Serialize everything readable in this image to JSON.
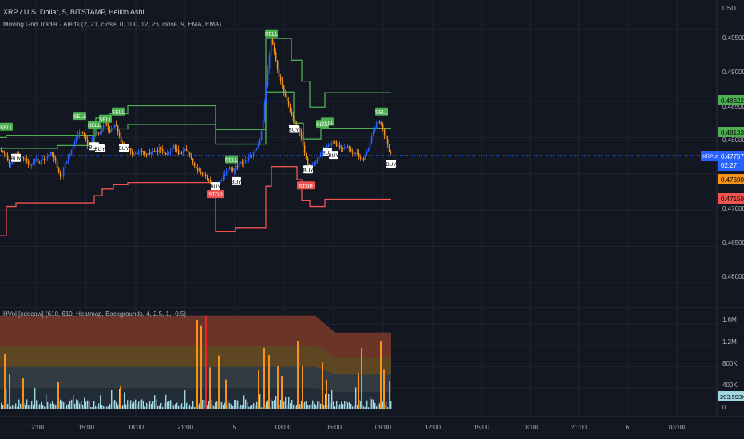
{
  "header": {
    "symbol_line": "XRP / U.S. Dollar, 5, BITSTAMP, Heikin Ashi",
    "indicator_line": "Moving Grid Trader - Alerts (2, 21, close, 0, 100, 12, 26, close, 9, EMA, EMA)",
    "volume_indicator_line": "HVol [xdecow] (610, 610, Heatmap, Backgrounds, 4, 2.5, 1, -0.5)"
  },
  "price_axis": {
    "currency": "USD",
    "ticks": [
      "0.4950000",
      "0.4900000",
      "0.4850000",
      "0.4800000",
      "0.4750000",
      "0.4700000",
      "0.4650000",
      "0.4600000"
    ]
  },
  "price_labels": {
    "upper_green": "0.4862221",
    "mid_green": "0.4813341",
    "symbol_badge": "XRPUSD",
    "last_price": "0.4775700",
    "countdown": "02:27",
    "orange_level": "0.4769020",
    "red_level": "0.4715038"
  },
  "volume_axis": {
    "ticks": [
      "1.6M",
      "1.2M",
      "800K",
      "400K",
      "0"
    ],
    "last_volume": "203.593K"
  },
  "time_axis": {
    "ticks": [
      "12:00",
      "15:00",
      "18:00",
      "21:00",
      "5",
      "03:00",
      "06:00",
      "09:00",
      "12:00",
      "15:00",
      "18:00",
      "21:00",
      "6",
      "03:00"
    ]
  },
  "signal_labels": {
    "buy": "BUY",
    "sell": "SELL",
    "stop": "STOP"
  },
  "colors": {
    "background": "#131722",
    "grid": "#1f2433",
    "candle_up": "#2962ff",
    "candle_down": "#f7931a",
    "grid_line_green": "#4caf50",
    "grid_line_red": "#f05350",
    "buy_label_bg": "#ffffff",
    "sell_label_bg": "#4caf50",
    "stop_label_bg": "#f05350",
    "last_price_bg": "#2962ff",
    "orange_badge": "#f7931a",
    "red_badge": "#f05350",
    "volume_bar": "#9fd6e0",
    "volume_high": "#f7931a",
    "volume_extreme": "#e5262b"
  },
  "chart_data": {
    "type": "candlestick",
    "instrument": "XRP / U.S. Dollar",
    "timeframe": "5",
    "exchange": "BITSTAMP",
    "candle_style": "Heikin Ashi",
    "ylim": [
      0.458,
      0.499
    ],
    "close_path": [
      [
        0,
        0.4783
      ],
      [
        4,
        0.4778
      ],
      [
        8,
        0.4772
      ],
      [
        12,
        0.476
      ],
      [
        16,
        0.4769
      ],
      [
        20,
        0.4776
      ],
      [
        24,
        0.4771
      ],
      [
        28,
        0.4773
      ],
      [
        32,
        0.4768
      ],
      [
        36,
        0.4762
      ],
      [
        40,
        0.4766
      ],
      [
        44,
        0.4771
      ],
      [
        48,
        0.4765
      ],
      [
        52,
        0.4772
      ],
      [
        56,
        0.4768
      ],
      [
        60,
        0.4776
      ],
      [
        64,
        0.478
      ],
      [
        68,
        0.4771
      ],
      [
        72,
        0.4754
      ],
      [
        76,
        0.4745
      ],
      [
        80,
        0.4762
      ],
      [
        84,
        0.4771
      ],
      [
        88,
        0.4778
      ],
      [
        92,
        0.4792
      ],
      [
        96,
        0.4803
      ],
      [
        100,
        0.4809
      ],
      [
        104,
        0.4805
      ],
      [
        108,
        0.4791
      ],
      [
        112,
        0.4788
      ],
      [
        116,
        0.48
      ],
      [
        120,
        0.4807
      ],
      [
        124,
        0.4803
      ],
      [
        128,
        0.4818
      ],
      [
        132,
        0.4823
      ],
      [
        136,
        0.4808
      ],
      [
        140,
        0.4812
      ],
      [
        144,
        0.482
      ],
      [
        148,
        0.4805
      ],
      [
        152,
        0.479
      ],
      [
        156,
        0.4782
      ],
      [
        160,
        0.4786
      ],
      [
        164,
        0.478
      ],
      [
        168,
        0.4776
      ],
      [
        172,
        0.4779
      ],
      [
        176,
        0.4784
      ],
      [
        180,
        0.478
      ],
      [
        184,
        0.4776
      ],
      [
        188,
        0.4779
      ],
      [
        192,
        0.4783
      ],
      [
        196,
        0.478
      ],
      [
        200,
        0.4786
      ],
      [
        204,
        0.4782
      ],
      [
        208,
        0.4774
      ],
      [
        212,
        0.478
      ],
      [
        216,
        0.4788
      ],
      [
        220,
        0.4784
      ],
      [
        224,
        0.4776
      ],
      [
        228,
        0.478
      ],
      [
        232,
        0.4784
      ],
      [
        236,
        0.4776
      ],
      [
        240,
        0.4768
      ],
      [
        244,
        0.476
      ],
      [
        248,
        0.4755
      ],
      [
        252,
        0.4752
      ],
      [
        256,
        0.4748
      ],
      [
        260,
        0.4741
      ],
      [
        264,
        0.4737
      ],
      [
        268,
        0.4733
      ],
      [
        272,
        0.4735
      ],
      [
        276,
        0.4742
      ],
      [
        280,
        0.4747
      ],
      [
        284,
        0.4753
      ],
      [
        288,
        0.4759
      ],
      [
        292,
        0.4755
      ],
      [
        296,
        0.476
      ],
      [
        300,
        0.4766
      ],
      [
        304,
        0.4764
      ],
      [
        308,
        0.4768
      ],
      [
        312,
        0.4772
      ],
      [
        316,
        0.4778
      ],
      [
        320,
        0.4782
      ],
      [
        324,
        0.4794
      ],
      [
        328,
        0.4812
      ],
      [
        332,
        0.486
      ],
      [
        336,
        0.4905
      ],
      [
        339,
        0.4935
      ],
      [
        342,
        0.4925
      ],
      [
        345,
        0.4905
      ],
      [
        348,
        0.489
      ],
      [
        352,
        0.4875
      ],
      [
        356,
        0.486
      ],
      [
        360,
        0.4845
      ],
      [
        364,
        0.4835
      ],
      [
        368,
        0.482
      ],
      [
        372,
        0.4815
      ],
      [
        376,
        0.4805
      ],
      [
        380,
        0.4785
      ],
      [
        384,
        0.4765
      ],
      [
        388,
        0.4758
      ],
      [
        392,
        0.4762
      ],
      [
        396,
        0.477
      ],
      [
        400,
        0.4776
      ],
      [
        404,
        0.4782
      ],
      [
        408,
        0.4787
      ],
      [
        412,
        0.479
      ],
      [
        416,
        0.4795
      ],
      [
        420,
        0.4791
      ],
      [
        424,
        0.4787
      ],
      [
        428,
        0.4785
      ],
      [
        432,
        0.4788
      ],
      [
        436,
        0.4784
      ],
      [
        440,
        0.478
      ],
      [
        444,
        0.4778
      ],
      [
        448,
        0.4776
      ],
      [
        452,
        0.477
      ],
      [
        456,
        0.4772
      ],
      [
        460,
        0.4783
      ],
      [
        464,
        0.4797
      ],
      [
        468,
        0.481
      ],
      [
        472,
        0.4823
      ],
      [
        476,
        0.482
      ],
      [
        480,
        0.4808
      ],
      [
        484,
        0.4795
      ],
      [
        488,
        0.4778
      ],
      [
        490,
        0.4776
      ]
    ],
    "grid_upper_green": [
      [
        0,
        0.48
      ],
      [
        8,
        0.48
      ],
      [
        8,
        0.4803
      ],
      [
        120,
        0.4803
      ],
      [
        120,
        0.4827
      ],
      [
        128,
        0.4827
      ],
      [
        128,
        0.483
      ],
      [
        138,
        0.483
      ],
      [
        138,
        0.4833
      ],
      [
        160,
        0.4833
      ],
      [
        160,
        0.4844
      ],
      [
        270,
        0.4844
      ],
      [
        270,
        0.4811
      ],
      [
        333,
        0.4811
      ],
      [
        333,
        0.4937
      ],
      [
        365,
        0.4937
      ],
      [
        365,
        0.4907
      ],
      [
        378,
        0.4907
      ],
      [
        378,
        0.4878
      ],
      [
        388,
        0.4878
      ],
      [
        388,
        0.4842
      ],
      [
        407,
        0.4842
      ],
      [
        407,
        0.4862
      ],
      [
        490,
        0.4862
      ]
    ],
    "grid_mid_green": [
      [
        0,
        0.4785
      ],
      [
        72,
        0.4785
      ],
      [
        72,
        0.4789
      ],
      [
        118,
        0.4789
      ],
      [
        118,
        0.4812
      ],
      [
        160,
        0.4812
      ],
      [
        160,
        0.4818
      ],
      [
        270,
        0.4818
      ],
      [
        270,
        0.4791
      ],
      [
        333,
        0.4791
      ],
      [
        333,
        0.4863
      ],
      [
        368,
        0.4863
      ],
      [
        368,
        0.482
      ],
      [
        380,
        0.482
      ],
      [
        380,
        0.4798
      ],
      [
        402,
        0.4798
      ],
      [
        402,
        0.4813
      ],
      [
        490,
        0.4813
      ]
    ],
    "grid_lower_red": [
      [
        0,
        0.4665
      ],
      [
        8,
        0.4665
      ],
      [
        8,
        0.4705
      ],
      [
        20,
        0.4705
      ],
      [
        20,
        0.471
      ],
      [
        118,
        0.471
      ],
      [
        118,
        0.472
      ],
      [
        128,
        0.472
      ],
      [
        128,
        0.4729
      ],
      [
        142,
        0.4729
      ],
      [
        142,
        0.4735
      ],
      [
        160,
        0.4735
      ],
      [
        160,
        0.4738
      ],
      [
        270,
        0.4738
      ],
      [
        270,
        0.467
      ],
      [
        295,
        0.467
      ],
      [
        295,
        0.4675
      ],
      [
        333,
        0.4675
      ],
      [
        333,
        0.4733
      ],
      [
        340,
        0.4733
      ],
      [
        340,
        0.476
      ],
      [
        372,
        0.476
      ],
      [
        372,
        0.4742
      ],
      [
        378,
        0.4742
      ],
      [
        378,
        0.4713
      ],
      [
        388,
        0.4713
      ],
      [
        388,
        0.4705
      ],
      [
        407,
        0.4705
      ],
      [
        407,
        0.4715
      ],
      [
        490,
        0.4715
      ]
    ],
    "signals": [
      {
        "type": "buy",
        "x": 20,
        "price": 0.4772
      },
      {
        "type": "buy",
        "x": 118,
        "price": 0.4788
      },
      {
        "type": "buy",
        "x": 125,
        "price": 0.4785
      },
      {
        "type": "buy",
        "x": 155,
        "price": 0.4786
      },
      {
        "type": "buy",
        "x": 270,
        "price": 0.4733
      },
      {
        "type": "buy",
        "x": 296,
        "price": 0.474
      },
      {
        "type": "buy",
        "x": 368,
        "price": 0.4812
      },
      {
        "type": "buy",
        "x": 386,
        "price": 0.4756
      },
      {
        "type": "buy",
        "x": 410,
        "price": 0.478
      },
      {
        "type": "buy",
        "x": 418,
        "price": 0.4776
      },
      {
        "type": "buy",
        "x": 490,
        "price": 0.4764
      },
      {
        "type": "sell",
        "x": 8,
        "price": 0.4815
      },
      {
        "type": "sell",
        "x": 100,
        "price": 0.483
      },
      {
        "type": "sell",
        "x": 118,
        "price": 0.4818
      },
      {
        "type": "sell",
        "x": 132,
        "price": 0.4826
      },
      {
        "type": "sell",
        "x": 148,
        "price": 0.4836
      },
      {
        "type": "sell",
        "x": 290,
        "price": 0.477
      },
      {
        "type": "sell",
        "x": 340,
        "price": 0.4944
      },
      {
        "type": "sell",
        "x": 404,
        "price": 0.4819
      },
      {
        "type": "sell",
        "x": 410,
        "price": 0.4822
      },
      {
        "type": "sell",
        "x": 478,
        "price": 0.4836
      },
      {
        "type": "stop",
        "x": 270,
        "price": 0.4722
      },
      {
        "type": "stop",
        "x": 383,
        "price": 0.4734
      }
    ],
    "volume": {
      "ylim": [
        0,
        1800000
      ],
      "zones": [
        {
          "from": 1200000,
          "to": 1760000,
          "color": "#7a3a2a"
        },
        {
          "from": 800000,
          "to": 1200000,
          "color": "#5c4a22"
        },
        {
          "from": 400000,
          "to": 800000,
          "color": "#2a3a46"
        },
        {
          "from": 0,
          "to": 400000,
          "color": "#1e2a36"
        }
      ],
      "highlights": [
        {
          "x": 5,
          "v": 1050000,
          "kind": "high"
        },
        {
          "x": 11,
          "v": 660000,
          "kind": "high"
        },
        {
          "x": 28,
          "v": 590000,
          "kind": "high"
        },
        {
          "x": 72,
          "v": 520000,
          "kind": "high"
        },
        {
          "x": 150,
          "v": 430000,
          "kind": "high"
        },
        {
          "x": 246,
          "v": 1680000,
          "kind": "high"
        },
        {
          "x": 251,
          "v": 1580000,
          "kind": "high"
        },
        {
          "x": 257,
          "v": 1760000,
          "kind": "extreme"
        },
        {
          "x": 262,
          "v": 790000,
          "kind": "high"
        },
        {
          "x": 273,
          "v": 1010000,
          "kind": "high"
        },
        {
          "x": 282,
          "v": 560000,
          "kind": "high"
        },
        {
          "x": 323,
          "v": 740000,
          "kind": "high"
        },
        {
          "x": 330,
          "v": 1160000,
          "kind": "high"
        },
        {
          "x": 336,
          "v": 1020000,
          "kind": "high"
        },
        {
          "x": 347,
          "v": 820000,
          "kind": "high"
        },
        {
          "x": 352,
          "v": 630000,
          "kind": "high"
        },
        {
          "x": 372,
          "v": 1290000,
          "kind": "high"
        },
        {
          "x": 378,
          "v": 820000,
          "kind": "high"
        },
        {
          "x": 403,
          "v": 900000,
          "kind": "high"
        },
        {
          "x": 408,
          "v": 560000,
          "kind": "high"
        },
        {
          "x": 448,
          "v": 690000,
          "kind": "high"
        },
        {
          "x": 452,
          "v": 1150000,
          "kind": "high"
        },
        {
          "x": 476,
          "v": 1290000,
          "kind": "high"
        },
        {
          "x": 480,
          "v": 760000,
          "kind": "high"
        },
        {
          "x": 487,
          "v": 540000,
          "kind": "high"
        }
      ]
    }
  }
}
